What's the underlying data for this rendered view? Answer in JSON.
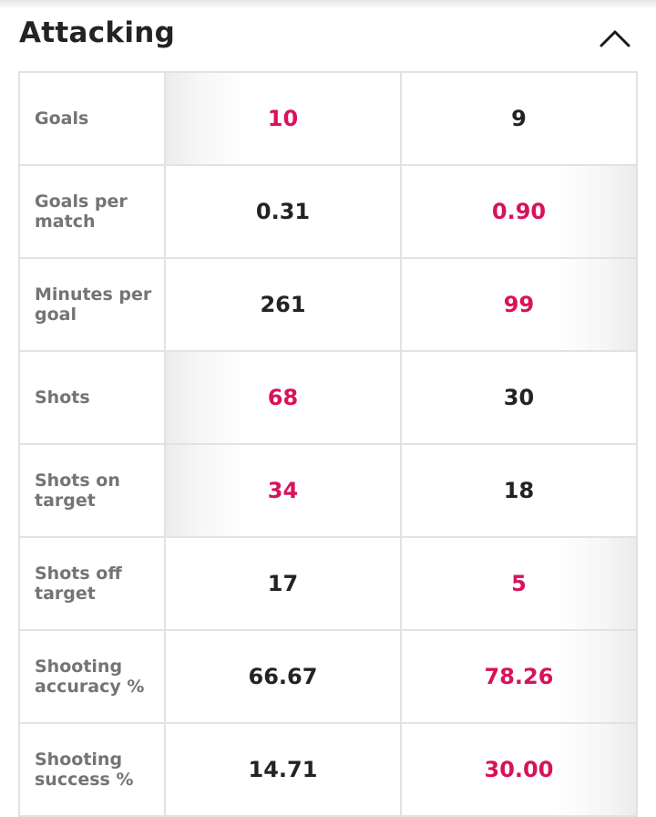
{
  "section": {
    "title": "Attacking",
    "toggle_icon": "chevron-up-icon"
  },
  "colors": {
    "leader": "#d8125b",
    "text": "#232323",
    "label": "#747474",
    "border": "#e2e2e2"
  },
  "stats": [
    {
      "label": "Goals",
      "left": "10",
      "right": "9",
      "leader": "left"
    },
    {
      "label": "Goals per match",
      "left": "0.31",
      "right": "0.90",
      "leader": "right"
    },
    {
      "label": "Minutes per goal",
      "left": "261",
      "right": "99",
      "leader": "right"
    },
    {
      "label": "Shots",
      "left": "68",
      "right": "30",
      "leader": "left"
    },
    {
      "label": "Shots on target",
      "left": "34",
      "right": "18",
      "leader": "left"
    },
    {
      "label": "Shots off target",
      "left": "17",
      "right": "5",
      "leader": "right"
    },
    {
      "label": "Shooting accuracy %",
      "left": "66.67",
      "right": "78.26",
      "leader": "right"
    },
    {
      "label": "Shooting success %",
      "left": "14.71",
      "right": "30.00",
      "leader": "right"
    }
  ]
}
